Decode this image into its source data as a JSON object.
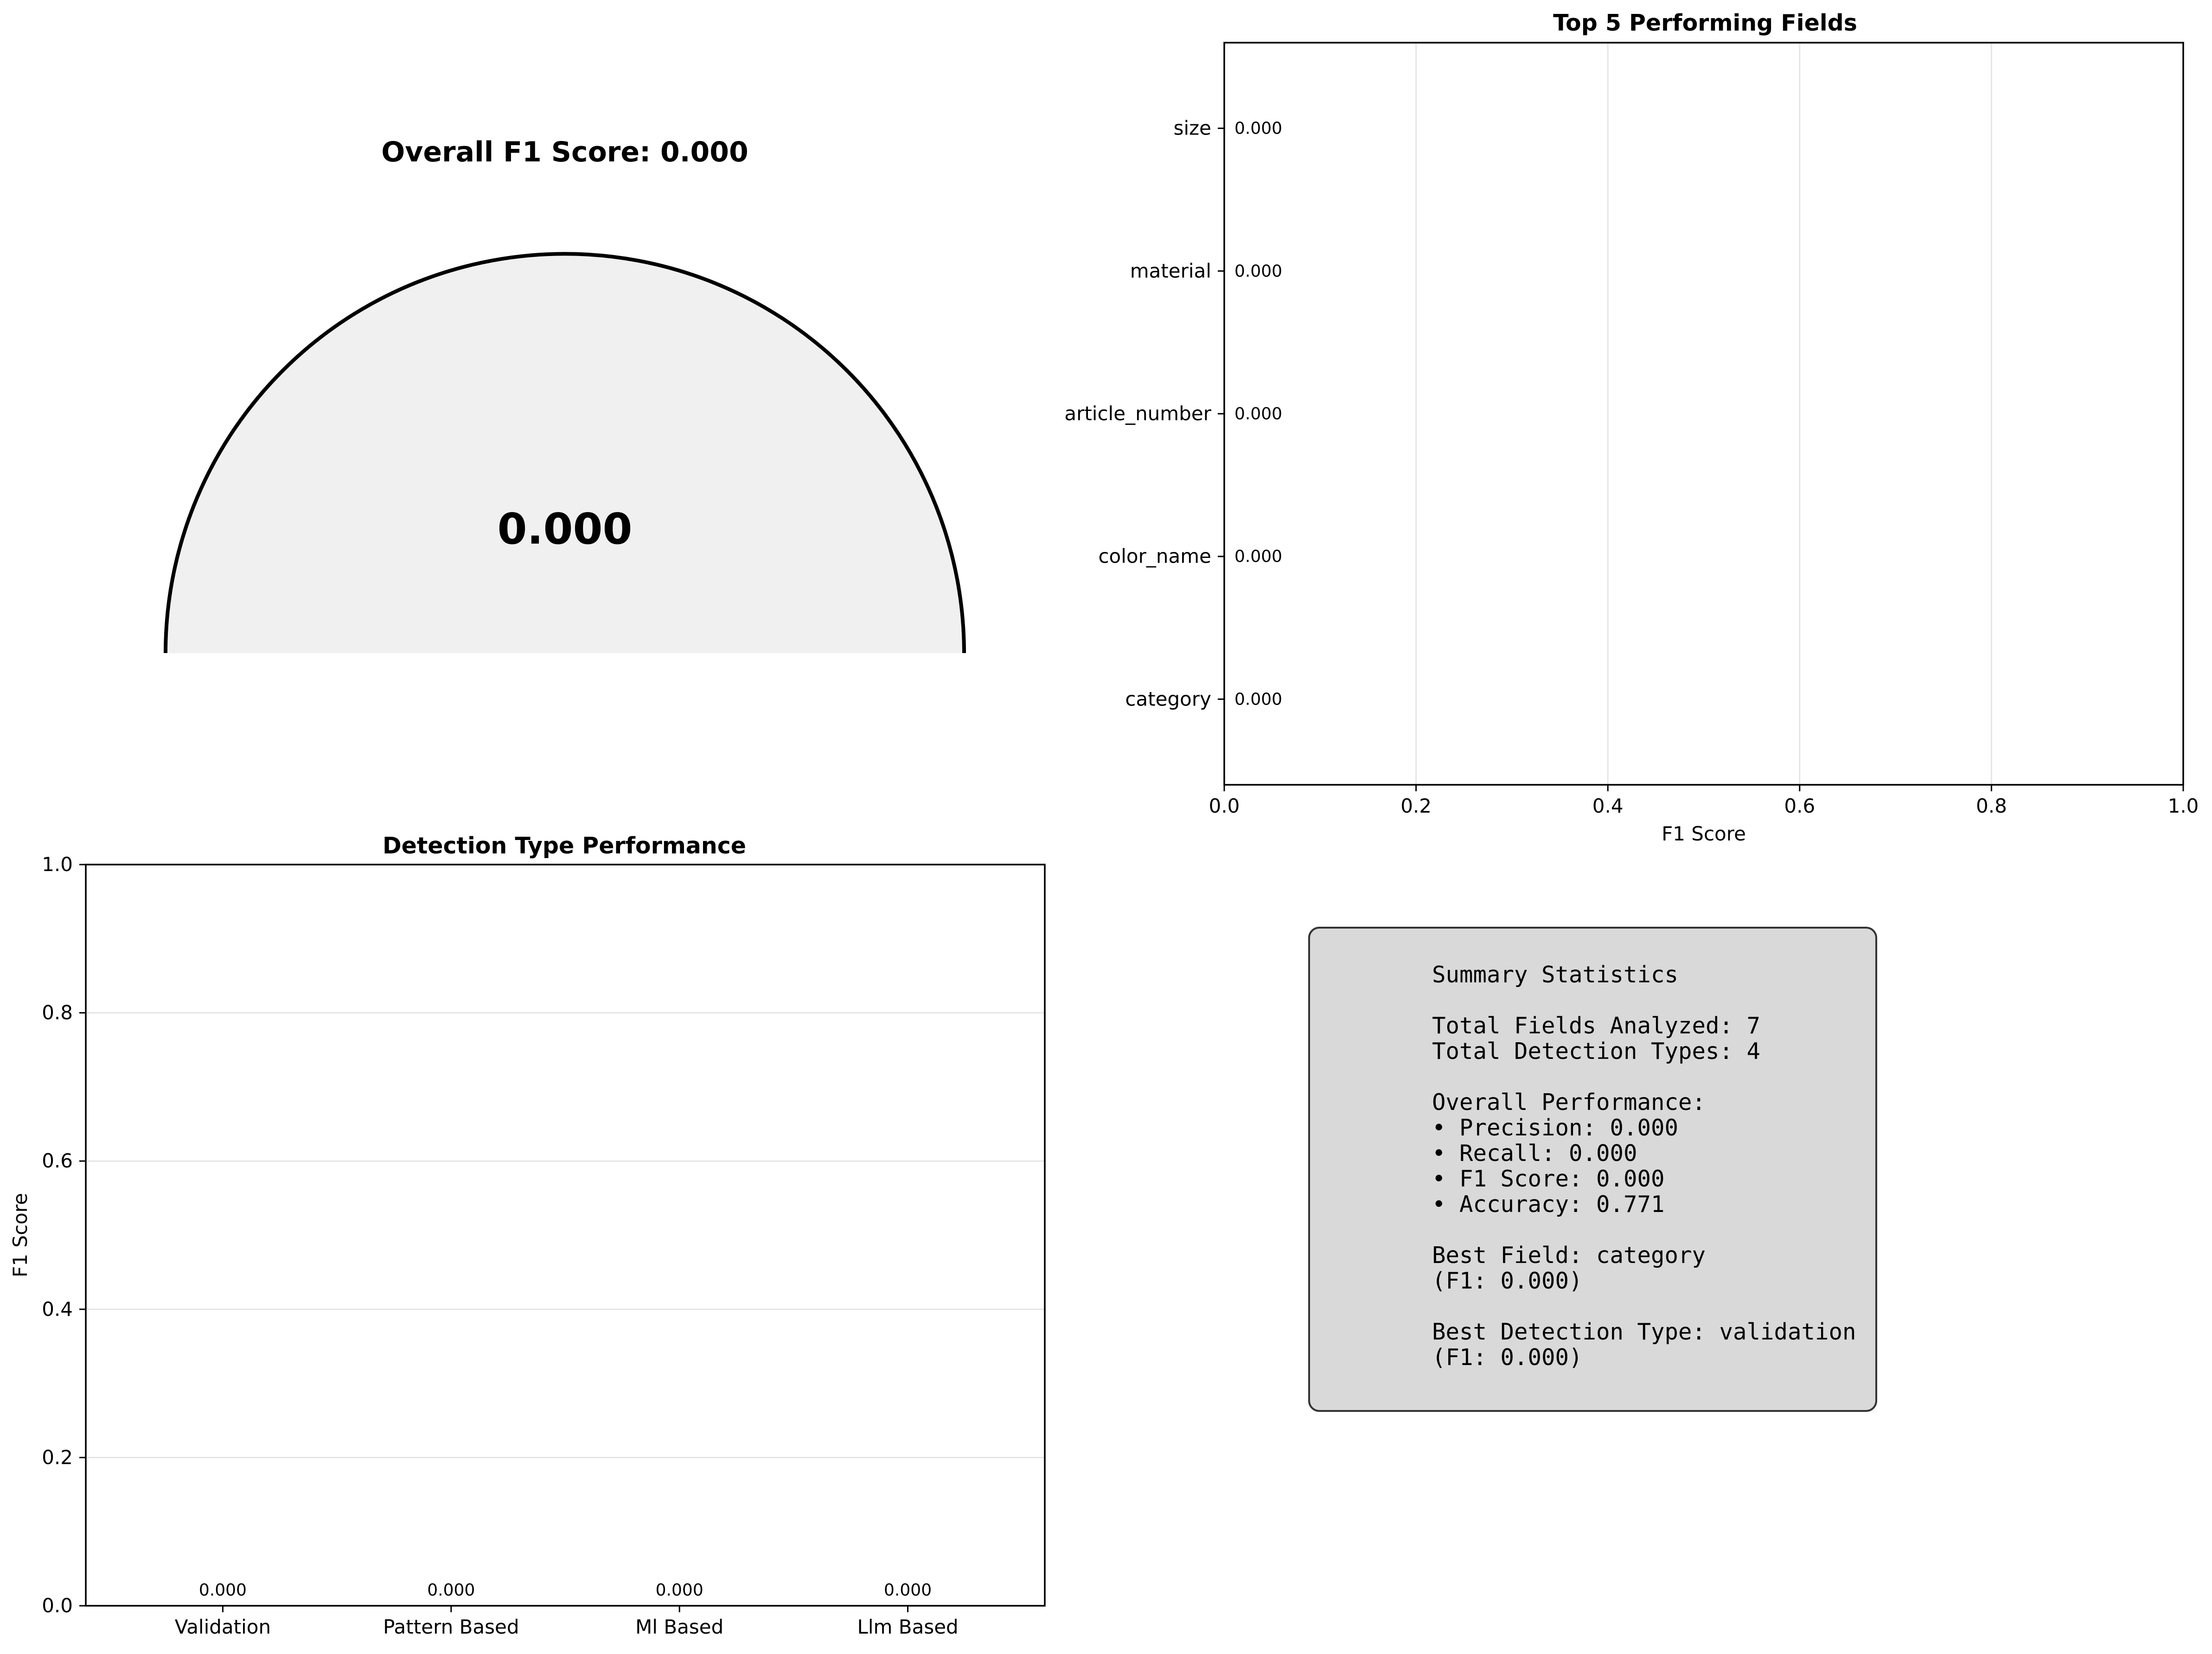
{
  "chart_data": [
    {
      "type": "gauge",
      "title": "Overall F1 Score: 0.000",
      "center_label": "0.000",
      "value": 0.0,
      "range": [
        0,
        1
      ],
      "colors": {
        "track": "#f0f0f0",
        "outline": "#000000"
      }
    },
    {
      "type": "bar",
      "orientation": "horizontal",
      "title": "Top 5 Performing Fields",
      "xlabel": "F1 Score",
      "ylabel": "",
      "xlim": [
        0,
        1
      ],
      "xticks": [
        "0.0",
        "0.2",
        "0.4",
        "0.6",
        "0.8",
        "1.0"
      ],
      "grid": "x",
      "categories": [
        "size",
        "material",
        "article_number",
        "color_name",
        "category"
      ],
      "values": [
        0.0,
        0.0,
        0.0,
        0.0,
        0.0
      ],
      "value_labels": [
        "0.000",
        "0.000",
        "0.000",
        "0.000",
        "0.000"
      ]
    },
    {
      "type": "bar",
      "orientation": "vertical",
      "title": "Detection Type Performance",
      "xlabel": "",
      "ylabel": "F1 Score",
      "ylim": [
        0,
        1
      ],
      "yticks": [
        "0.0",
        "0.2",
        "0.4",
        "0.6",
        "0.8",
        "1.0"
      ],
      "grid": "y",
      "categories": [
        "Validation",
        "Pattern Based",
        "Ml Based",
        "Llm Based"
      ],
      "values": [
        0.0,
        0.0,
        0.0,
        0.0
      ],
      "value_labels": [
        "0.000",
        "0.000",
        "0.000",
        "0.000"
      ]
    },
    {
      "type": "table",
      "lines": [
        "Summary Statistics",
        "",
        "Total Fields Analyzed: 7",
        "Total Detection Types: 4",
        "",
        "Overall Performance:",
        "• Precision: 0.000",
        "• Recall: 0.000",
        "• F1 Score: 0.000",
        "• Accuracy: 0.771",
        "",
        "Best Field: category",
        "(F1: 0.000)",
        "",
        "Best Detection Type: validation",
        "(F1: 0.000)"
      ],
      "colors": {
        "box": "#d9d9d9",
        "border": "#333333"
      }
    }
  ]
}
